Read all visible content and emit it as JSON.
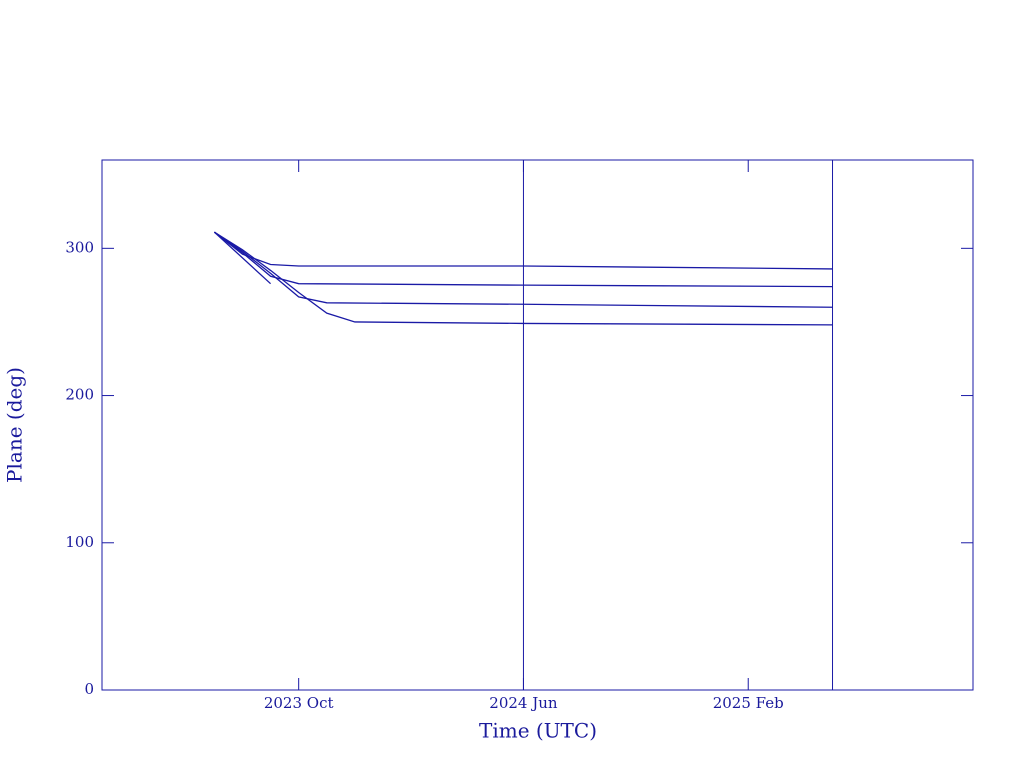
{
  "chart_data": {
    "type": "line",
    "xlabel": "Time (UTC)",
    "ylabel": "Plane (deg)",
    "xlim": [
      "2023-03",
      "2025-10"
    ],
    "xticks": [
      {
        "value": "2023-10",
        "label": "2023 Oct"
      },
      {
        "value": "2024-06",
        "label": "2024 Jun"
      },
      {
        "value": "2025-02",
        "label": "2025 Feb"
      }
    ],
    "ylim": [
      0,
      360
    ],
    "yticks": [
      0,
      100,
      200,
      300
    ],
    "vlines": [
      "2024-06",
      "2025-05"
    ],
    "color": "#1a1aa6",
    "series": [
      {
        "color": "#1a1aa6",
        "x": [
          "2023-07",
          "2023-08",
          "2023-09",
          "2023-10",
          "2024-06",
          "2025-05"
        ],
        "values": [
          311,
          296,
          289,
          288,
          288,
          286
        ]
      },
      {
        "color": "#1a1aa6",
        "x": [
          "2023-07",
          "2023-08",
          "2023-09",
          "2023-10",
          "2024-06",
          "2025-05"
        ],
        "values": [
          311,
          297,
          281,
          276,
          275,
          274
        ]
      },
      {
        "color": "#1a1aa6",
        "x": [
          "2023-07",
          "2023-08",
          "2023-09",
          "2023-10",
          "2023-11",
          "2024-06",
          "2025-05"
        ],
        "values": [
          311,
          298,
          283,
          267,
          263,
          262,
          260
        ]
      },
      {
        "color": "#1a1aa6",
        "x": [
          "2023-07",
          "2023-08",
          "2023-09",
          "2023-10",
          "2023-11",
          "2023-12",
          "2024-06",
          "2025-05"
        ],
        "values": [
          311,
          299,
          285,
          270,
          256,
          250,
          249,
          248
        ]
      },
      {
        "color": "#1a1aa6",
        "x": [
          "2023-07",
          "2023-09"
        ],
        "values": [
          311,
          276
        ]
      }
    ]
  }
}
